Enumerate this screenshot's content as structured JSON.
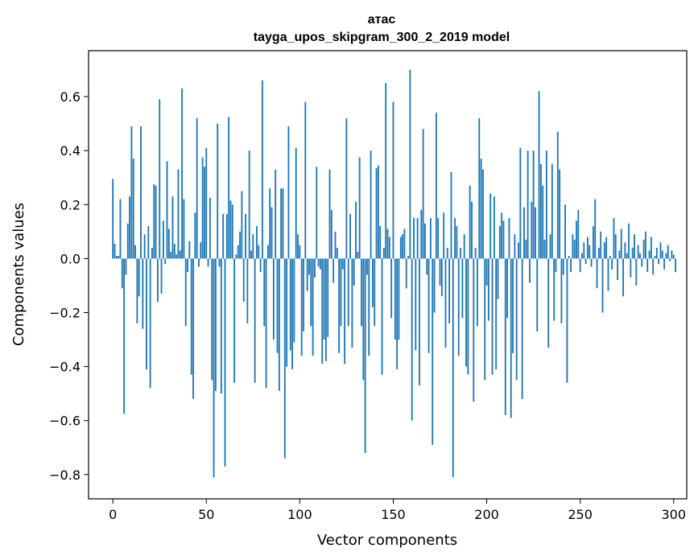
{
  "chart_data": {
    "type": "bar",
    "title": "атас",
    "subtitle": "tayga_upos_skipgram_300_2_2019 model",
    "xlabel": "Vector components",
    "ylabel": "Components values",
    "xlim": [
      -13,
      307
    ],
    "ylim": [
      -0.89,
      0.77
    ],
    "xticks": [
      0,
      50,
      100,
      150,
      200,
      250,
      300
    ],
    "yticks": [
      -0.8,
      -0.6,
      -0.4,
      -0.2,
      0.0,
      0.2,
      0.4,
      0.6
    ],
    "ytick_labels": [
      "−0.8",
      "−0.6",
      "−0.4",
      "−0.2",
      "0.0",
      "0.2",
      "0.4",
      "0.6"
    ],
    "color": "#1f77b4",
    "values": [
      0.295,
      0.055,
      0.01,
      0.01,
      0.22,
      -0.11,
      -0.575,
      -0.06,
      0.13,
      0.23,
      0.49,
      0.37,
      0.05,
      -0.24,
      -0.14,
      0.49,
      -0.26,
      0.09,
      -0.41,
      0.12,
      -0.48,
      0.04,
      0.275,
      0.27,
      -0.16,
      0.59,
      -0.13,
      0.14,
      -0.02,
      0.36,
      0.11,
      0.025,
      0.23,
      0.055,
      0.015,
      0.33,
      0.03,
      0.63,
      0.22,
      -0.25,
      -0.05,
      0.065,
      -0.43,
      -0.52,
      0.17,
      0.52,
      -0.03,
      0.06,
      0.375,
      0.34,
      0.41,
      -0.03,
      0.225,
      -0.45,
      -0.81,
      -0.49,
      0.5,
      -0.03,
      -0.5,
      0.165,
      -0.77,
      0.165,
      0.525,
      0.215,
      0.2,
      -0.46,
      0.015,
      0.05,
      0.1,
      0.25,
      -0.16,
      0.165,
      -0.24,
      0.4,
      0.03,
      0.09,
      -0.46,
      0.12,
      0.05,
      -0.05,
      0.66,
      -0.25,
      -0.48,
      0.05,
      0.26,
      0.19,
      -0.3,
      0.33,
      -0.35,
      -0.49,
      0.26,
      0.26,
      -0.74,
      -0.4,
      0.49,
      -0.34,
      -0.41,
      -0.31,
      0.41,
      0.09,
      0.05,
      -0.36,
      -0.27,
      0.58,
      -0.12,
      -0.06,
      -0.25,
      -0.36,
      -0.07,
      0.34,
      -0.03,
      -0.04,
      -0.39,
      -0.3,
      -0.38,
      -0.29,
      0.33,
      0.18,
      -0.09,
      0.1,
      0.04,
      -0.35,
      -0.25,
      -0.04,
      -0.39,
      0.52,
      -0.25,
      0.165,
      -0.33,
      -0.1,
      0.21,
      0.025,
      0.375,
      -0.25,
      -0.45,
      -0.72,
      -0.06,
      -0.36,
      0.4,
      -0.18,
      -0.25,
      0.335,
      0.345,
      0.12,
      -0.43,
      0.04,
      0.65,
      0.11,
      0.08,
      -0.22,
      0.58,
      -0.3,
      -0.41,
      -0.3,
      0.08,
      0.09,
      0.11,
      -0.11,
      0.01,
      0.7,
      -0.6,
      0.15,
      -0.34,
      0.15,
      -0.47,
      0.18,
      0.48,
      0.13,
      -0.06,
      -0.35,
      0.15,
      -0.69,
      -0.2,
      0.54,
      0.15,
      -0.1,
      -0.14,
      0.17,
      -0.33,
      0.04,
      -0.24,
      0.32,
      -0.81,
      0.15,
      0.12,
      -0.36,
      0.04,
      -0.22,
      0.09,
      -0.4,
      -0.43,
      0.27,
      0.21,
      -0.53,
      0.04,
      -0.25,
      0.52,
      0.37,
      0.33,
      -0.45,
      -0.1,
      -0.23,
      0.24,
      -0.43,
      0.23,
      -0.41,
      -0.15,
      0.12,
      0.17,
      0.14,
      -0.58,
      -0.22,
      0.15,
      -0.59,
      -0.35,
      0.09,
      -0.45,
      0.06,
      0.41,
      -0.52,
      0.19,
      0.07,
      0.4,
      -0.09,
      0.21,
      0.4,
      0.19,
      -0.27,
      0.62,
      0.35,
      0.27,
      0.07,
      0.4,
      -0.33,
      0.09,
      0.35,
      -0.23,
      -0.05,
      0.47,
      0.33,
      -0.24,
      -0.06,
      0.2,
      -0.46,
      0.01,
      -0.05,
      0.09,
      0.07,
      0.14,
      0.18,
      -0.05,
      0.02,
      0.06,
      -0.02,
      0.08,
      0.05,
      -0.03,
      0.12,
      0.22,
      -0.11,
      0.04,
      0.1,
      -0.2,
      0.06,
      0.08,
      -0.12,
      0.01,
      -0.04,
      0.15,
      0.09,
      -0.08,
      0.03,
      0.11,
      -0.14,
      0.06,
      0.02,
      0.13,
      -0.07,
      0.04,
      0.09,
      -0.1,
      0.05,
      0.02,
      -0.03,
      0.07,
      0.1,
      -0.05,
      0.03,
      0.08,
      -0.06,
      0.01,
      0.04,
      -0.02,
      0.06,
      0.03,
      -0.04,
      0.02,
      0.05,
      -0.01,
      0.03,
      0.015,
      -0.05
    ]
  }
}
